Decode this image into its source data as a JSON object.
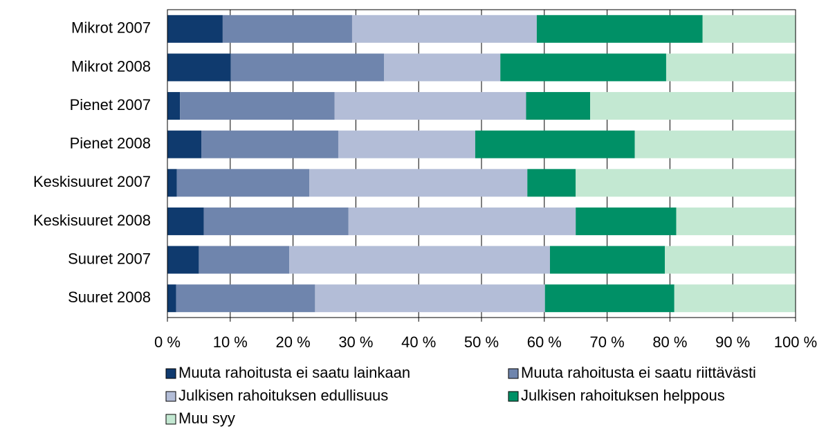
{
  "chart_data": {
    "type": "stacked-barh",
    "categories": [
      "Mikrot 2007",
      "Mikrot 2008",
      "Pienet 2007",
      "Pienet 2008",
      "Keskisuuret 2007",
      "Keskisuuret 2008",
      "Suuret 2007",
      "Suuret 2008"
    ],
    "series": [
      {
        "name": "Muuta rahoitusta ei saatu lainkaan",
        "color": "#0f3a6e",
        "values": [
          8.8,
          10.1,
          2.0,
          5.4,
          1.5,
          5.8,
          5.0,
          1.4
        ]
      },
      {
        "name": "Muuta rahoitusta ei saatu riittävästi",
        "color": "#6f85ad",
        "values": [
          20.6,
          24.4,
          24.6,
          21.8,
          21.1,
          23.0,
          14.4,
          22.1
        ]
      },
      {
        "name": "Julkisen rahoituksen edullisuus",
        "color": "#b3bdd7",
        "values": [
          29.4,
          18.5,
          30.5,
          21.8,
          34.7,
          36.2,
          41.5,
          36.6
        ]
      },
      {
        "name": "Julkisen rahoituksen helppous",
        "color": "#009066",
        "values": [
          26.4,
          26.4,
          10.2,
          25.4,
          7.7,
          16.0,
          18.3,
          20.6
        ]
      },
      {
        "name": "Muu syy",
        "color": "#c3e8d2",
        "values": [
          14.8,
          20.6,
          32.7,
          25.6,
          35.0,
          19.0,
          20.8,
          19.3
        ]
      }
    ],
    "xlim": [
      0,
      100
    ],
    "xticks": [
      {
        "value": 0,
        "label": "0 %"
      },
      {
        "value": 10,
        "label": "10 %"
      },
      {
        "value": 20,
        "label": "20 %"
      },
      {
        "value": 30,
        "label": "30 %"
      },
      {
        "value": 40,
        "label": "40 %"
      },
      {
        "value": 50,
        "label": "50 %"
      },
      {
        "value": 60,
        "label": "60 %"
      },
      {
        "value": 70,
        "label": "70 %"
      },
      {
        "value": 80,
        "label": "80 %"
      },
      {
        "value": 90,
        "label": "90 %"
      },
      {
        "value": 100,
        "label": "100 %"
      }
    ],
    "grid": true,
    "legend": "bottom"
  }
}
